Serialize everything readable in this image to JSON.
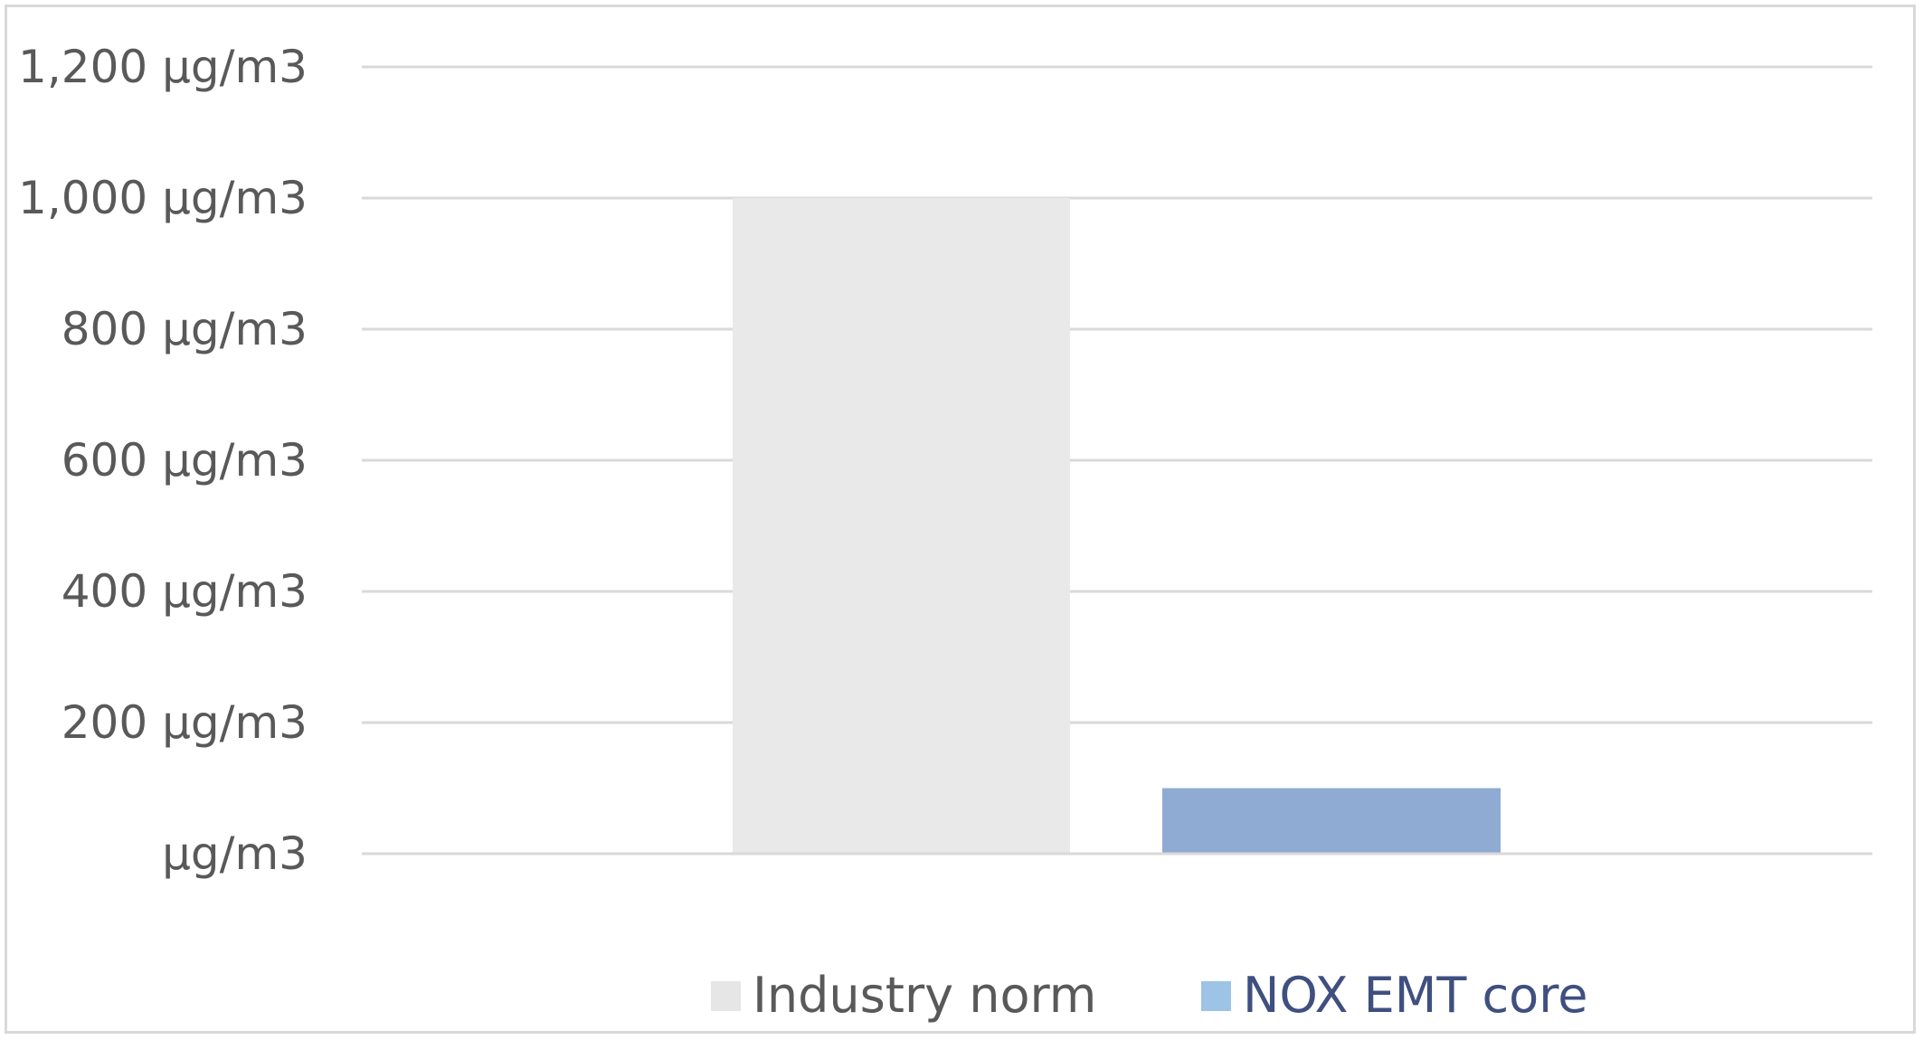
{
  "chart_data": {
    "type": "bar",
    "title": "",
    "xlabel": "",
    "ylabel": "",
    "ylim": [
      0,
      1200
    ],
    "y_ticks": [
      0,
      200,
      400,
      600,
      800,
      1000,
      1200
    ],
    "y_tick_labels": [
      " µg/m3",
      "200 µg/m3",
      "400 µg/m3",
      "600 µg/m3",
      "800 µg/m3",
      "1,000 µg/m3",
      "1,200 µg/m3"
    ],
    "grid": true,
    "legend_position": "bottom",
    "series": [
      {
        "name": "Industry norm",
        "value": 1000,
        "color": "#e9e9e9",
        "legend_color": "#e6e6e6",
        "legend_text_color": "#595959"
      },
      {
        "name": "NOX EMT core",
        "value": 100,
        "color": "#8faad3",
        "legend_color": "#9dc3e6",
        "legend_text_color": "#3f4f80"
      }
    ],
    "colors": {
      "gridline": "#d9d9d9",
      "tick_text": "#595959",
      "border": "#d9d9d9"
    }
  }
}
